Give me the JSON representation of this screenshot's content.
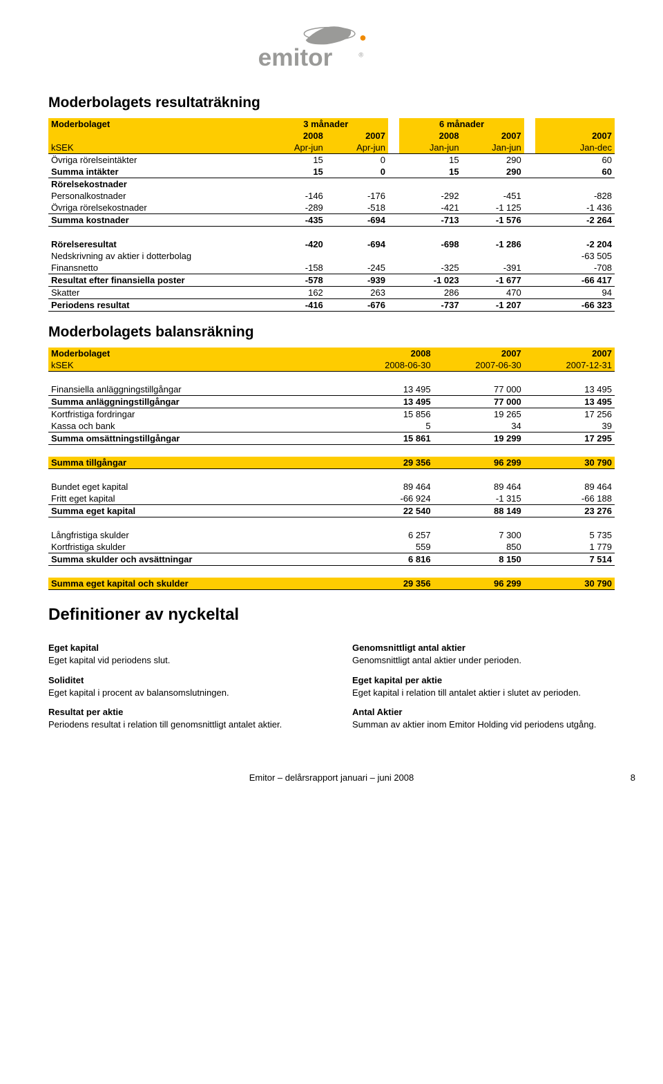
{
  "colors": {
    "yellow": "#fecc00",
    "text": "#000000",
    "bg": "#ffffff",
    "logo_gray": "#9a9a98",
    "logo_orange": "#f08a00"
  },
  "logo_text": "emitor",
  "h1_income": "Moderbolagets resultaträkning",
  "income": {
    "header1": {
      "label": "Moderbolaget",
      "g1": "3 månader",
      "g2": "6 månader",
      "g3": ""
    },
    "header2": {
      "label": "",
      "c1": "2008",
      "c2": "2007",
      "c3": "2008",
      "c4": "2007",
      "c5": "2007"
    },
    "header3": {
      "label": "kSEK",
      "c1": "Apr-jun",
      "c2": "Apr-jun",
      "c3": "Jan-jun",
      "c4": "Jan-jun",
      "c5": "Jan-dec"
    },
    "rows": [
      {
        "label": "Övriga rörelseintäkter",
        "c": [
          "15",
          "0",
          "15",
          "290",
          "60"
        ],
        "bold": false,
        "top": true
      },
      {
        "label": "Summa intäkter",
        "c": [
          "15",
          "0",
          "15",
          "290",
          "60"
        ],
        "bold": true,
        "bot": true
      },
      {
        "label": "Rörelsekostnader",
        "c": [
          "",
          "",
          "",
          "",
          ""
        ],
        "bold": true
      },
      {
        "label": "Personalkostnader",
        "c": [
          "-146",
          "-176",
          "-292",
          "-451",
          "-828"
        ],
        "bold": false
      },
      {
        "label": "Övriga rörelsekostnader",
        "c": [
          "-289",
          "-518",
          "-421",
          "-1 125",
          "-1 436"
        ],
        "bold": false
      },
      {
        "label": "Summa kostnader",
        "c": [
          "-435",
          "-694",
          "-713",
          "-1 576",
          "-2 264"
        ],
        "bold": true,
        "top": true,
        "bot": true
      },
      {
        "spacer": true
      },
      {
        "label": "Rörelseresultat",
        "c": [
          "-420",
          "-694",
          "-698",
          "-1 286",
          "-2 204"
        ],
        "bold": true
      },
      {
        "label": "Nedskrivning av aktier i dotterbolag",
        "c": [
          "",
          "",
          "",
          "",
          "-63 505"
        ],
        "bold": false
      },
      {
        "label": "Finansnetto",
        "c": [
          "-158",
          "-245",
          "-325",
          "-391",
          "-708"
        ],
        "bold": false
      },
      {
        "label": "Resultat efter finansiella poster",
        "c": [
          "-578",
          "-939",
          "-1 023",
          "-1 677",
          "-66 417"
        ],
        "bold": true,
        "top": true,
        "bot": true
      },
      {
        "label": "Skatter",
        "c": [
          "162",
          "263",
          "286",
          "470",
          "94"
        ],
        "bold": false
      },
      {
        "label": "Periodens resultat",
        "c": [
          "-416",
          "-676",
          "-737",
          "-1 207",
          "-66 323"
        ],
        "bold": true,
        "top": true,
        "bot": true
      }
    ]
  },
  "h1_balance": "Moderbolagets balansräkning",
  "balance": {
    "header1": {
      "label": "Moderbolaget",
      "c1": "2008",
      "c2": "2007",
      "c3": "2007"
    },
    "header2": {
      "label": "kSEK",
      "c1": "2008-06-30",
      "c2": "2007-06-30",
      "c3": "2007-12-31"
    },
    "rows": [
      {
        "spacer": true,
        "top": true
      },
      {
        "label": "Finansiella anläggningstillgångar",
        "c": [
          "13 495",
          "77 000",
          "13 495"
        ],
        "bold": false
      },
      {
        "label": "Summa anläggningstillgångar",
        "c": [
          "13 495",
          "77 000",
          "13 495"
        ],
        "bold": true,
        "top": true,
        "bot": true
      },
      {
        "label": "Kortfristiga fordringar",
        "c": [
          "15 856",
          "19 265",
          "17 256"
        ],
        "bold": false
      },
      {
        "label": "Kassa och bank",
        "c": [
          "5",
          "34",
          "39"
        ],
        "bold": false
      },
      {
        "label": "Summa omsättningstillgångar",
        "c": [
          "15 861",
          "19 299",
          "17 295"
        ],
        "bold": true,
        "top": true,
        "bot": true
      },
      {
        "spacer": true
      },
      {
        "label": "Summa tillgångar",
        "c": [
          "29 356",
          "96 299",
          "30 790"
        ],
        "bold": true,
        "hdr": true
      },
      {
        "spacer": true,
        "top": true
      },
      {
        "label": "Bundet eget kapital",
        "c": [
          "89 464",
          "89 464",
          "89 464"
        ],
        "bold": false
      },
      {
        "label": "Fritt eget kapital",
        "c": [
          "-66 924",
          "-1 315",
          "-66 188"
        ],
        "bold": false
      },
      {
        "label": "Summa eget kapital",
        "c": [
          "22 540",
          "88 149",
          "23 276"
        ],
        "bold": true,
        "top": true,
        "bot": true
      },
      {
        "spacer": true
      },
      {
        "label": "Långfristiga skulder",
        "c": [
          "6 257",
          "7 300",
          "5 735"
        ],
        "bold": false
      },
      {
        "label": "Kortfristiga skulder",
        "c": [
          "559",
          "850",
          "1 779"
        ],
        "bold": false
      },
      {
        "label": "Summa skulder och avsättningar",
        "c": [
          "6 816",
          "8 150",
          "7 514"
        ],
        "bold": true,
        "top": true,
        "bot": true
      },
      {
        "spacer": true
      },
      {
        "label": "Summa eget kapital och skulder",
        "c": [
          "29 356",
          "96 299",
          "30 790"
        ],
        "bold": true,
        "hdr": true,
        "bot": true
      }
    ]
  },
  "h1_defs": "Definitioner av nyckeltal",
  "defs": {
    "left": [
      {
        "term": "Eget kapital",
        "desc": "Eget kapital vid periodens slut."
      },
      {
        "term": "Soliditet",
        "desc": "Eget kapital i procent av balansomslutningen."
      },
      {
        "term": "Resultat per aktie",
        "desc": "Periodens resultat i relation till genomsnittligt antalet aktier."
      }
    ],
    "right": [
      {
        "term": "Genomsnittligt antal aktier",
        "desc": "Genomsnittligt antal aktier under perioden."
      },
      {
        "term": "Eget kapital per aktie",
        "desc": "Eget kapital i relation till antalet aktier i slutet av perioden."
      },
      {
        "term": "Antal Aktier",
        "desc": "Summan av aktier inom Emitor Holding vid periodens utgång."
      }
    ]
  },
  "footer": {
    "text": "Emitor – delårsrapport januari – juni 2008",
    "page": "8"
  }
}
